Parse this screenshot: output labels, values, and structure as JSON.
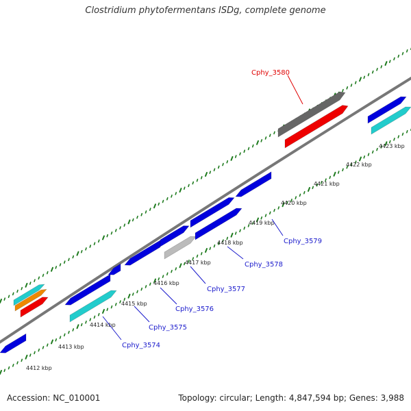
{
  "title": "Clostridium phytofermentans ISDg, complete genome",
  "footer": {
    "accession": "Accession: NC_010001",
    "summary": "Topology: circular; Length: 4,847,594 bp; Genes: 3,988"
  },
  "kbp_ticks": [
    "4412 kbp",
    "4413 kbp",
    "4414 kbp",
    "4415 kbp",
    "4416 kbp",
    "4417 kbp",
    "4418 kbp",
    "4419 kbp",
    "4420 kbp",
    "4421 kbp",
    "4422 kbp",
    "4423 kbp"
  ],
  "gene_labels": [
    "Cphy_3574",
    "Cphy_3575",
    "Cphy_3576",
    "Cphy_3577",
    "Cphy_3578",
    "Cphy_3579",
    "Cphy_3580"
  ],
  "colors": {
    "forward_strand": "#1a1acc",
    "reverse_strand": "#1a1acc",
    "cds_blue": "#0000dd",
    "cds_cyan": "#22cccc",
    "cds_red": "#ee0000",
    "cds_grey": "#666666",
    "cds_lightgrey": "#bbbbbb",
    "cds_orange": "#ee8800",
    "backbone": "#777777",
    "ticks_green": "#1d7a1d",
    "highlight_label": "#e00000"
  }
}
